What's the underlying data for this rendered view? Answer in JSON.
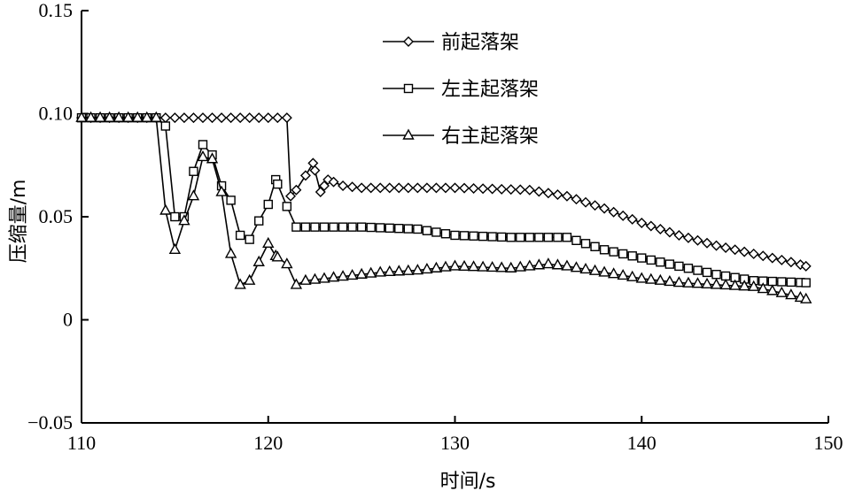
{
  "chart_data": {
    "type": "line",
    "xlabel": "时间/s",
    "ylabel": "压缩量/m",
    "xlim": [
      110,
      150
    ],
    "ylim": [
      -0.05,
      0.15
    ],
    "xticks": [
      "110",
      "120",
      "130",
      "140",
      "150"
    ],
    "yticks": [
      "−0.05",
      "0",
      "0.05",
      "0.10",
      "0.15"
    ],
    "legend_position": "top-right",
    "grid": false,
    "series": [
      {
        "name": "前起落架",
        "marker": "diamond",
        "points": [
          [
            110,
            0.098
          ],
          [
            111,
            0.098
          ],
          [
            112,
            0.098
          ],
          [
            113,
            0.098
          ],
          [
            114,
            0.098
          ],
          [
            115,
            0.098
          ],
          [
            116,
            0.098
          ],
          [
            117,
            0.098
          ],
          [
            118,
            0.098
          ],
          [
            119,
            0.098
          ],
          [
            120,
            0.098
          ],
          [
            121,
            0.098
          ],
          [
            121.2,
            0.06
          ],
          [
            121.5,
            0.063
          ],
          [
            122,
            0.07
          ],
          [
            122.4,
            0.076
          ],
          [
            122.8,
            0.062
          ],
          [
            123.2,
            0.068
          ],
          [
            124,
            0.065
          ],
          [
            125,
            0.064
          ],
          [
            130,
            0.064
          ],
          [
            134,
            0.063
          ],
          [
            136,
            0.06
          ],
          [
            138,
            0.054
          ],
          [
            140,
            0.047
          ],
          [
            142,
            0.041
          ],
          [
            144,
            0.036
          ],
          [
            146,
            0.032
          ],
          [
            148,
            0.028
          ],
          [
            148.8,
            0.026
          ]
        ]
      },
      {
        "name": "左主起落架",
        "marker": "square",
        "points": [
          [
            110,
            0.098
          ],
          [
            111,
            0.098
          ],
          [
            112,
            0.098
          ],
          [
            113,
            0.098
          ],
          [
            114,
            0.098
          ],
          [
            114.5,
            0.094
          ],
          [
            115,
            0.05
          ],
          [
            115.5,
            0.05
          ],
          [
            116,
            0.072
          ],
          [
            116.5,
            0.085
          ],
          [
            117,
            0.08
          ],
          [
            117.5,
            0.065
          ],
          [
            118,
            0.058
          ],
          [
            118.5,
            0.041
          ],
          [
            119,
            0.039
          ],
          [
            119.5,
            0.048
          ],
          [
            120,
            0.056
          ],
          [
            120.4,
            0.068
          ],
          [
            121,
            0.055
          ],
          [
            121.5,
            0.045
          ],
          [
            123,
            0.045
          ],
          [
            125,
            0.045
          ],
          [
            128,
            0.044
          ],
          [
            130,
            0.041
          ],
          [
            133,
            0.04
          ],
          [
            136,
            0.04
          ],
          [
            138,
            0.034
          ],
          [
            140,
            0.03
          ],
          [
            142,
            0.026
          ],
          [
            144,
            0.022
          ],
          [
            146,
            0.019
          ],
          [
            148.8,
            0.018
          ]
        ]
      },
      {
        "name": "右主起落架",
        "marker": "triangle",
        "points": [
          [
            110,
            0.098
          ],
          [
            111,
            0.098
          ],
          [
            112,
            0.098
          ],
          [
            113,
            0.098
          ],
          [
            114,
            0.098
          ],
          [
            114.5,
            0.053
          ],
          [
            115,
            0.034
          ],
          [
            115.5,
            0.048
          ],
          [
            116,
            0.06
          ],
          [
            116.5,
            0.079
          ],
          [
            117,
            0.078
          ],
          [
            117.5,
            0.062
          ],
          [
            118,
            0.032
          ],
          [
            118.5,
            0.017
          ],
          [
            119,
            0.019
          ],
          [
            119.5,
            0.028
          ],
          [
            120,
            0.037
          ],
          [
            120.4,
            0.031
          ],
          [
            121,
            0.027
          ],
          [
            121.5,
            0.017
          ],
          [
            122,
            0.019
          ],
          [
            124,
            0.021
          ],
          [
            126,
            0.023
          ],
          [
            128,
            0.024
          ],
          [
            130,
            0.026
          ],
          [
            133,
            0.025
          ],
          [
            135,
            0.027
          ],
          [
            136,
            0.026
          ],
          [
            138,
            0.023
          ],
          [
            140,
            0.02
          ],
          [
            142,
            0.018
          ],
          [
            144,
            0.017
          ],
          [
            146,
            0.016
          ],
          [
            148,
            0.012
          ],
          [
            148.8,
            0.01
          ]
        ]
      }
    ]
  }
}
